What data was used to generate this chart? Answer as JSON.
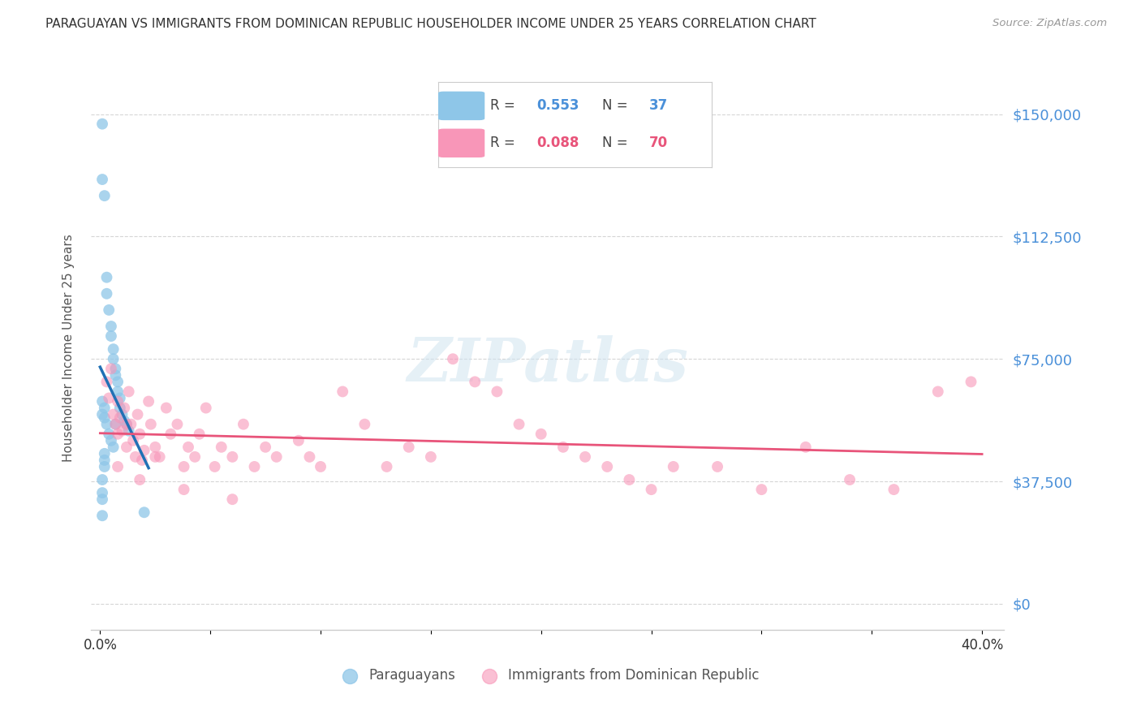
{
  "title": "PARAGUAYAN VS IMMIGRANTS FROM DOMINICAN REPUBLIC HOUSEHOLDER INCOME UNDER 25 YEARS CORRELATION CHART",
  "source": "Source: ZipAtlas.com",
  "ylabel": "Householder Income Under 25 years",
  "yticks": [
    0,
    37500,
    75000,
    112500,
    150000
  ],
  "ytick_labels": [
    "$0",
    "$37,500",
    "$75,000",
    "$112,500",
    "$150,000"
  ],
  "xlim": [
    -0.004,
    0.41
  ],
  "ylim": [
    -8000,
    165000
  ],
  "R_blue": "0.553",
  "N_blue": "37",
  "R_pink": "0.088",
  "N_pink": "70",
  "blue_color": "#8ec6e8",
  "pink_color": "#f896b8",
  "blue_line_color": "#2171b5",
  "pink_line_color": "#e8547a",
  "watermark": "ZIPatlas",
  "blue_x": [
    0.001,
    0.001,
    0.001,
    0.001,
    0.001,
    0.002,
    0.002,
    0.002,
    0.002,
    0.003,
    0.003,
    0.003,
    0.004,
    0.004,
    0.005,
    0.005,
    0.005,
    0.006,
    0.006,
    0.006,
    0.007,
    0.007,
    0.007,
    0.008,
    0.008,
    0.009,
    0.009,
    0.01,
    0.011,
    0.012,
    0.013,
    0.001,
    0.001,
    0.02,
    0.002,
    0.002,
    0.001
  ],
  "blue_y": [
    147000,
    130000,
    62000,
    34000,
    27000,
    125000,
    60000,
    57000,
    46000,
    100000,
    95000,
    55000,
    90000,
    52000,
    85000,
    82000,
    50000,
    78000,
    75000,
    48000,
    72000,
    70000,
    55000,
    68000,
    65000,
    63000,
    60000,
    58000,
    56000,
    55000,
    53000,
    58000,
    32000,
    28000,
    44000,
    42000,
    38000
  ],
  "pink_x": [
    0.003,
    0.004,
    0.005,
    0.006,
    0.007,
    0.008,
    0.008,
    0.009,
    0.01,
    0.011,
    0.012,
    0.013,
    0.014,
    0.015,
    0.016,
    0.017,
    0.018,
    0.019,
    0.02,
    0.022,
    0.023,
    0.025,
    0.027,
    0.03,
    0.032,
    0.035,
    0.038,
    0.04,
    0.043,
    0.045,
    0.048,
    0.052,
    0.055,
    0.06,
    0.065,
    0.07,
    0.075,
    0.08,
    0.09,
    0.1,
    0.11,
    0.12,
    0.13,
    0.14,
    0.15,
    0.16,
    0.17,
    0.18,
    0.19,
    0.2,
    0.21,
    0.22,
    0.23,
    0.24,
    0.25,
    0.26,
    0.28,
    0.3,
    0.32,
    0.34,
    0.36,
    0.38,
    0.395,
    0.008,
    0.012,
    0.018,
    0.025,
    0.038,
    0.06,
    0.095
  ],
  "pink_y": [
    68000,
    63000,
    72000,
    58000,
    55000,
    52000,
    62000,
    57000,
    53000,
    60000,
    48000,
    65000,
    55000,
    50000,
    45000,
    58000,
    52000,
    44000,
    47000,
    62000,
    55000,
    48000,
    45000,
    60000,
    52000,
    55000,
    42000,
    48000,
    45000,
    52000,
    60000,
    42000,
    48000,
    45000,
    55000,
    42000,
    48000,
    45000,
    50000,
    42000,
    65000,
    55000,
    42000,
    48000,
    45000,
    75000,
    68000,
    65000,
    55000,
    52000,
    48000,
    45000,
    42000,
    38000,
    35000,
    42000,
    42000,
    35000,
    48000,
    38000,
    35000,
    65000,
    68000,
    42000,
    55000,
    38000,
    45000,
    35000,
    32000,
    45000
  ]
}
